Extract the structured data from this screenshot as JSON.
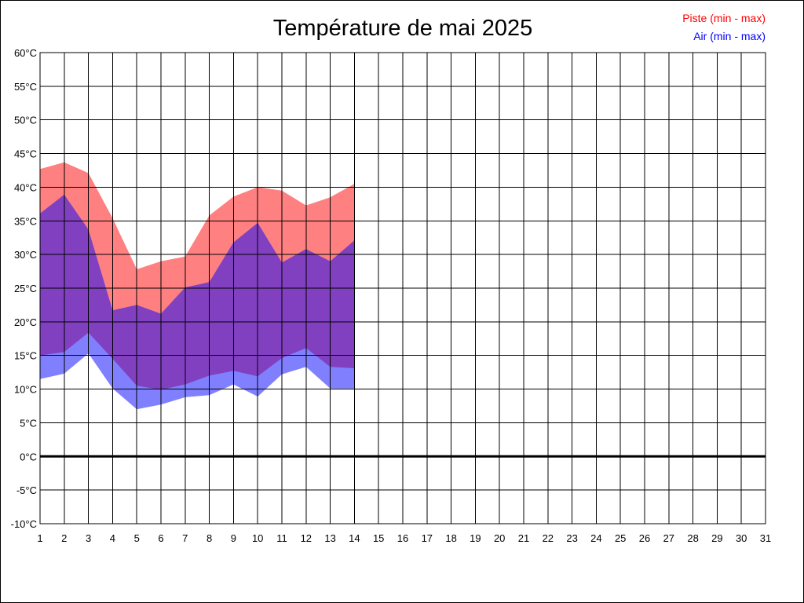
{
  "chart_data": {
    "type": "area",
    "title": "Température de mai 2025",
    "xlabel": "",
    "ylabel": "",
    "x": [
      1,
      2,
      3,
      4,
      5,
      6,
      7,
      8,
      9,
      10,
      11,
      12,
      13,
      14
    ],
    "xlim": [
      1,
      31
    ],
    "x_ticks": [
      "1",
      "2",
      "3",
      "4",
      "5",
      "6",
      "7",
      "8",
      "9",
      "10",
      "11",
      "12",
      "13",
      "14",
      "15",
      "16",
      "17",
      "18",
      "19",
      "20",
      "21",
      "22",
      "23",
      "24",
      "25",
      "26",
      "27",
      "28",
      "29",
      "30",
      "31"
    ],
    "ylim": [
      -10,
      60
    ],
    "y_ticks": [
      "-10°C",
      "-5°C",
      "0°C",
      "5°C",
      "10°C",
      "15°C",
      "20°C",
      "25°C",
      "30°C",
      "35°C",
      "40°C",
      "45°C",
      "50°C",
      "55°C",
      "60°C"
    ],
    "y_tick_values": [
      -10,
      -5,
      0,
      5,
      10,
      15,
      20,
      25,
      30,
      35,
      40,
      45,
      50,
      55,
      60
    ],
    "grid": true,
    "zero_line": true,
    "legend_position": "top-right",
    "series": [
      {
        "name": "Piste (min - max)",
        "color": "#ff0000",
        "fill": "#ff8080",
        "min": [
          15.0,
          15.5,
          18.4,
          14.5,
          10.5,
          9.9,
          10.7,
          12.0,
          12.7,
          11.9,
          14.6,
          16.1,
          13.3,
          13.1
        ],
        "max": [
          42.7,
          43.7,
          42.1,
          35.4,
          27.8,
          29.0,
          29.7,
          35.8,
          38.6,
          40.0,
          39.5,
          37.3,
          38.5,
          40.5
        ]
      },
      {
        "name": "Air (min - max)",
        "color": "#0000ff",
        "fill": "#8080ff",
        "min": [
          11.5,
          12.3,
          15.3,
          10.1,
          7.0,
          7.7,
          8.8,
          9.1,
          10.7,
          8.9,
          12.2,
          13.3,
          10.1,
          10.1
        ],
        "max": [
          36.1,
          38.9,
          33.7,
          21.7,
          22.5,
          21.2,
          25.1,
          25.9,
          31.8,
          34.7,
          28.8,
          30.8,
          29.0,
          32.1
        ]
      }
    ],
    "overlap_fill": "#8040c0"
  }
}
